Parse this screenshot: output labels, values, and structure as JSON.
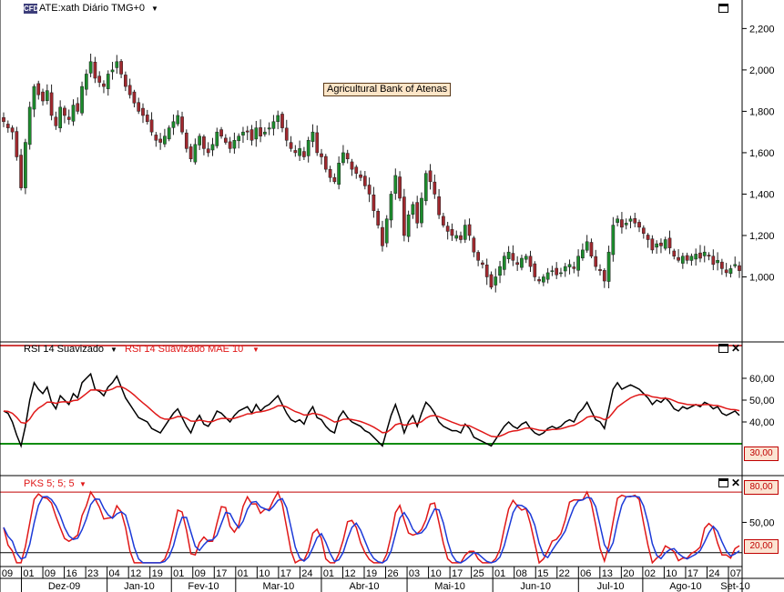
{
  "colors": {
    "up_candle": "#1c8c2c",
    "down_candle": "#a0282e",
    "rsi_line": "#000000",
    "rsi_mae": "#e01818",
    "stoch_k": "#e01818",
    "stoch_d": "#1c3ad8",
    "level_line_rsi": "#108c10",
    "level_line_stoch": "#000000",
    "overbought_line": "#c00000",
    "label_box": "#fde6c8"
  },
  "header": {
    "symbol_badge": "CFD",
    "title": "ATE:xath Diário TMG+0",
    "dropdown_icon": "triangle-down",
    "maximize_icon": "window-icon"
  },
  "annotation": "Agricultural Bank of Atenas",
  "rsi_header": {
    "series1": "RSI 14 Suavizado",
    "series2": "RSI 14 Suavizado MAE 10"
  },
  "stoch_header": {
    "series": "PKS 5; 5; 5"
  },
  "price_tags": {
    "rsi_level": "30,00",
    "stoch_high": "80,00",
    "stoch_low": "20,00"
  },
  "chart_data": [
    {
      "type": "candlestick",
      "title": "ATE:xath Diário TMG+0",
      "ylim": [
        0.8,
        2.25
      ],
      "yticks": [
        "2,200",
        "2,000",
        "1,800",
        "1,600",
        "1,400",
        "1,200",
        "1,000"
      ],
      "close": [
        1.75,
        1.72,
        1.7,
        1.58,
        1.43,
        1.65,
        1.82,
        1.92,
        1.88,
        1.85,
        1.9,
        1.78,
        1.73,
        1.82,
        1.78,
        1.76,
        1.83,
        1.8,
        1.92,
        1.98,
        2.04,
        1.96,
        1.94,
        1.92,
        1.98,
        2.0,
        2.04,
        1.98,
        1.92,
        1.88,
        1.84,
        1.8,
        1.78,
        1.75,
        1.7,
        1.66,
        1.65,
        1.68,
        1.72,
        1.75,
        1.78,
        1.7,
        1.62,
        1.57,
        1.64,
        1.68,
        1.62,
        1.6,
        1.64,
        1.7,
        1.68,
        1.65,
        1.62,
        1.66,
        1.68,
        1.7,
        1.7,
        1.66,
        1.72,
        1.68,
        1.7,
        1.72,
        1.75,
        1.78,
        1.72,
        1.66,
        1.62,
        1.6,
        1.62,
        1.58,
        1.66,
        1.7,
        1.6,
        1.58,
        1.52,
        1.48,
        1.46,
        1.55,
        1.6,
        1.57,
        1.52,
        1.5,
        1.48,
        1.44,
        1.4,
        1.32,
        1.25,
        1.15,
        1.28,
        1.4,
        1.49,
        1.38,
        1.2,
        1.3,
        1.35,
        1.26,
        1.38,
        1.5,
        1.46,
        1.4,
        1.3,
        1.25,
        1.22,
        1.2,
        1.2,
        1.18,
        1.25,
        1.2,
        1.12,
        1.08,
        1.06,
        1.0,
        0.95,
        1.0,
        1.05,
        1.1,
        1.12,
        1.08,
        1.06,
        1.09,
        1.1,
        1.05,
        1.0,
        0.98,
        1.0,
        1.02,
        1.03,
        1.01,
        1.02,
        1.05,
        1.06,
        1.04,
        1.1,
        1.13,
        1.17,
        1.1,
        1.05,
        1.03,
        0.98,
        1.12,
        1.25,
        1.28,
        1.24,
        1.26,
        1.28,
        1.26,
        1.24,
        1.21,
        1.18,
        1.13,
        1.16,
        1.15,
        1.18,
        1.14,
        1.1,
        1.08,
        1.1,
        1.08,
        1.1,
        1.11,
        1.09,
        1.12,
        1.1,
        1.06,
        1.08,
        1.04,
        1.02,
        1.04,
        1.06,
        1.03
      ],
      "rsi_ylim": [
        20,
        70
      ],
      "rsi_yticks": [
        "60,00",
        "50,00",
        "40,00"
      ],
      "rsi_level": 30,
      "rsi": [
        45,
        44,
        40,
        34,
        29,
        38,
        50,
        58,
        55,
        53,
        56,
        49,
        46,
        52,
        50,
        48,
        53,
        51,
        58,
        60,
        62,
        55,
        54,
        52,
        56,
        58,
        61,
        56,
        51,
        48,
        45,
        42,
        41,
        40,
        37,
        36,
        35,
        38,
        41,
        44,
        46,
        42,
        38,
        35,
        40,
        43,
        39,
        38,
        41,
        45,
        44,
        42,
        40,
        43,
        45,
        46,
        47,
        44,
        48,
        45,
        47,
        48,
        50,
        52,
        48,
        44,
        41,
        40,
        41,
        39,
        44,
        47,
        42,
        41,
        38,
        36,
        35,
        42,
        45,
        42,
        40,
        39,
        38,
        36,
        35,
        33,
        31,
        29,
        36,
        43,
        48,
        42,
        35,
        40,
        43,
        38,
        44,
        49,
        47,
        44,
        40,
        38,
        37,
        36,
        36,
        35,
        39,
        37,
        33,
        32,
        31,
        30,
        29,
        32,
        35,
        38,
        40,
        38,
        37,
        39,
        40,
        37,
        35,
        34,
        35,
        37,
        38,
        37,
        38,
        40,
        41,
        40,
        44,
        46,
        49,
        45,
        41,
        40,
        37,
        46,
        55,
        58,
        55,
        56,
        57,
        56,
        55,
        53,
        51,
        48,
        50,
        49,
        51,
        49,
        46,
        45,
        47,
        46,
        47,
        48,
        47,
        49,
        48,
        46,
        47,
        44,
        43,
        44,
        45,
        43
      ],
      "stoch_ylim": [
        0,
        90
      ],
      "stoch_yticks": [
        "80,00",
        "50,00",
        "20,00"
      ],
      "stoch_levels": [
        80,
        20
      ],
      "x_axis": {
        "day_labels": [
          "09",
          "01",
          "09",
          "16",
          "23",
          "04",
          "12",
          "19",
          "01",
          "09",
          "17",
          "01",
          "10",
          "17",
          "24",
          "01",
          "12",
          "19",
          "26",
          "03",
          "10",
          "17",
          "25",
          "01",
          "08",
          "15",
          "22",
          "06",
          "13",
          "20",
          "02",
          "10",
          "17",
          "24",
          "07"
        ],
        "month_labels": [
          "Dez-09",
          "Jan-10",
          "Fev-10",
          "Mar-10",
          "Abr-10",
          "Mai-10",
          "Jun-10",
          "Jul-10",
          "Ago-10",
          "Set-10"
        ]
      }
    }
  ]
}
